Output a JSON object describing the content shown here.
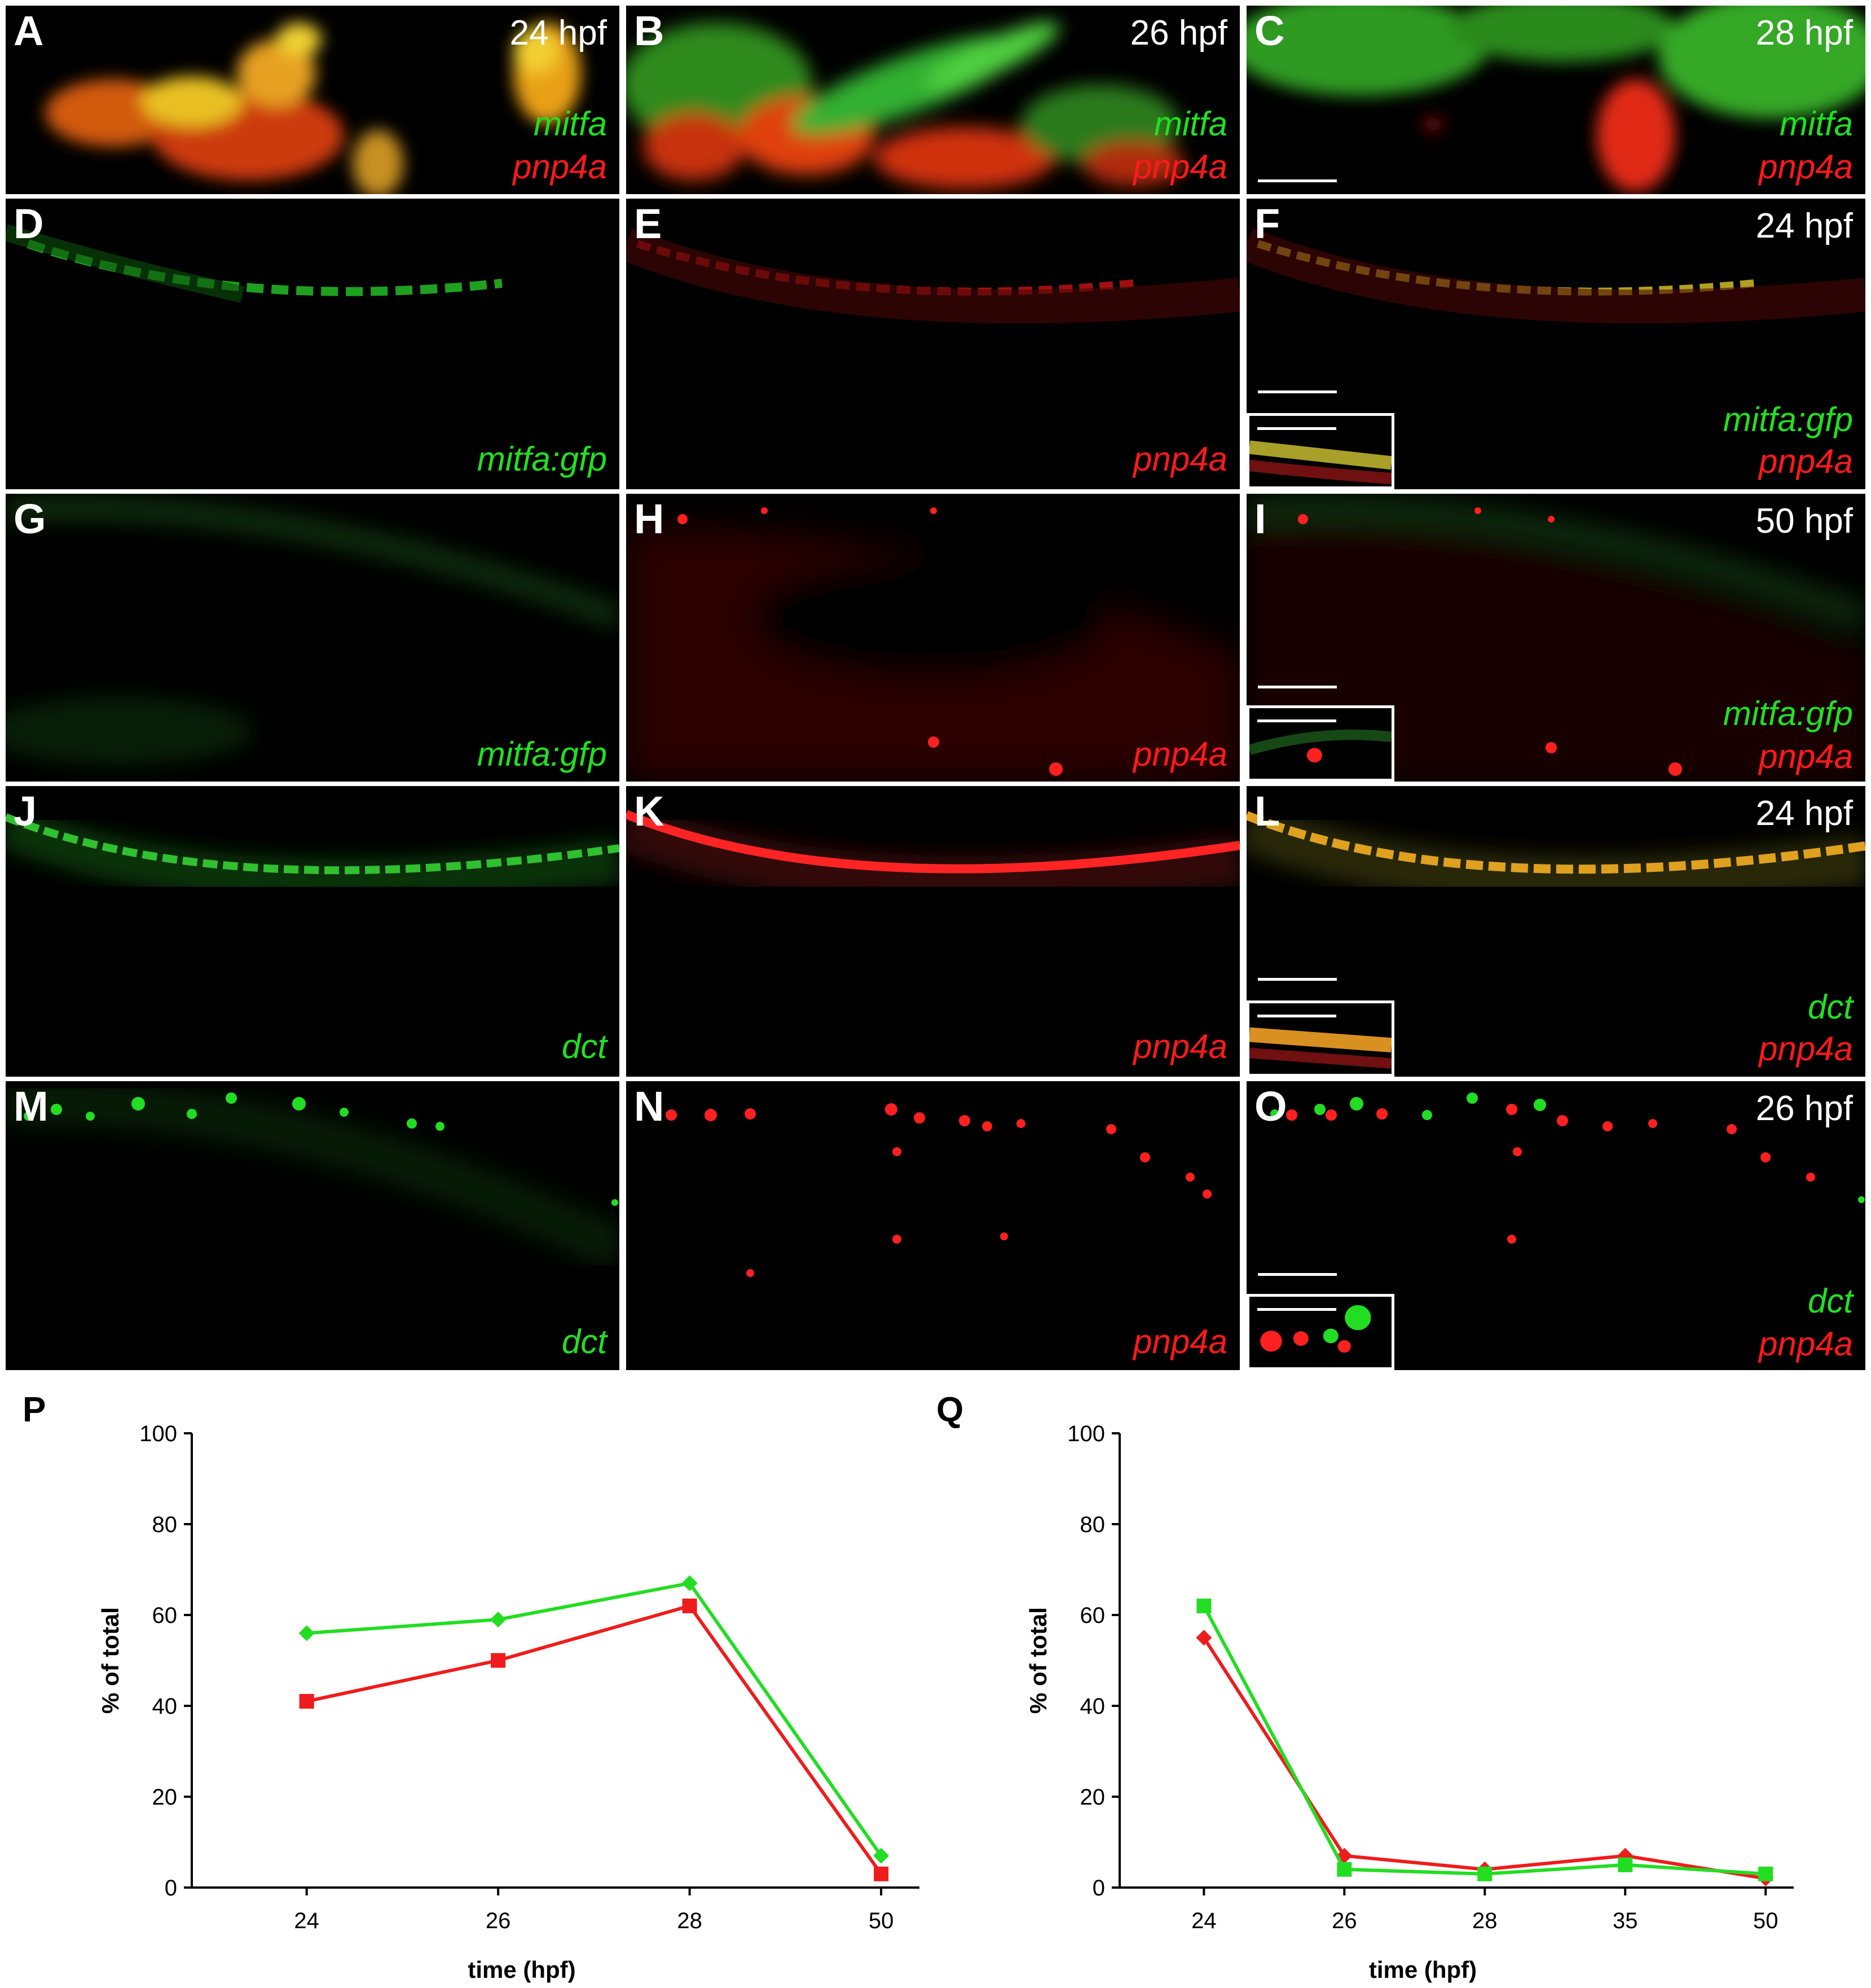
{
  "panels": {
    "A": {
      "letter": "A",
      "stage": "24 hpf",
      "marker_green": "mitfa",
      "marker_red": "pnp4a"
    },
    "B": {
      "letter": "B",
      "stage": "26 hpf",
      "marker_green": "mitfa",
      "marker_red": "pnp4a"
    },
    "C": {
      "letter": "C",
      "stage": "28 hpf",
      "marker_green": "mitfa",
      "marker_red": "pnp4a"
    },
    "D": {
      "letter": "D",
      "marker_green": "mitfa:gfp"
    },
    "E": {
      "letter": "E",
      "marker_red": "pnp4a"
    },
    "F": {
      "letter": "F",
      "stage": "24 hpf",
      "marker_green": "mitfa:gfp",
      "marker_red": "pnp4a"
    },
    "G": {
      "letter": "G",
      "marker_green": "mitfa:gfp"
    },
    "H": {
      "letter": "H",
      "marker_red": "pnp4a"
    },
    "I": {
      "letter": "I",
      "stage": "50 hpf",
      "marker_green": "mitfa:gfp",
      "marker_red": "pnp4a"
    },
    "J": {
      "letter": "J",
      "marker_green": "dct"
    },
    "K": {
      "letter": "K",
      "marker_red": "pnp4a"
    },
    "L": {
      "letter": "L",
      "stage": "24 hpf",
      "marker_green": "dct",
      "marker_red": "pnp4a"
    },
    "M": {
      "letter": "M",
      "marker_green": "dct"
    },
    "N": {
      "letter": "N",
      "marker_red": "pnp4a"
    },
    "O": {
      "letter": "O",
      "stage": "26 hpf",
      "marker_green": "dct",
      "marker_red": "pnp4a"
    }
  },
  "colors": {
    "green": "#22dd22",
    "red": "#ee1c1c"
  },
  "chart_data": [
    {
      "panel_letter": "P",
      "type": "line",
      "x": [
        "24",
        "26",
        "28",
        "50"
      ],
      "ylim": [
        0,
        100
      ],
      "yticks": [
        0,
        20,
        40,
        60,
        80,
        100
      ],
      "xlabel": "time (hpf)",
      "ylabel": "% of total",
      "series": [
        {
          "color": "#22dd22",
          "marker": "diamond",
          "values": [
            56,
            59,
            67,
            7
          ]
        },
        {
          "color": "#ee1c1c",
          "marker": "square",
          "values": [
            41,
            50,
            62,
            3
          ]
        }
      ]
    },
    {
      "panel_letter": "Q",
      "type": "line",
      "x": [
        "24",
        "26",
        "28",
        "35",
        "50"
      ],
      "ylim": [
        0,
        100
      ],
      "yticks": [
        0,
        20,
        40,
        60,
        80,
        100
      ],
      "xlabel": "time (hpf)",
      "ylabel": "% of total",
      "series": [
        {
          "color": "#ee1c1c",
          "marker": "diamond",
          "values": [
            55,
            7,
            4,
            7,
            2
          ]
        },
        {
          "color": "#22dd22",
          "marker": "square",
          "values": [
            62,
            4,
            3,
            5,
            3
          ]
        }
      ]
    }
  ]
}
